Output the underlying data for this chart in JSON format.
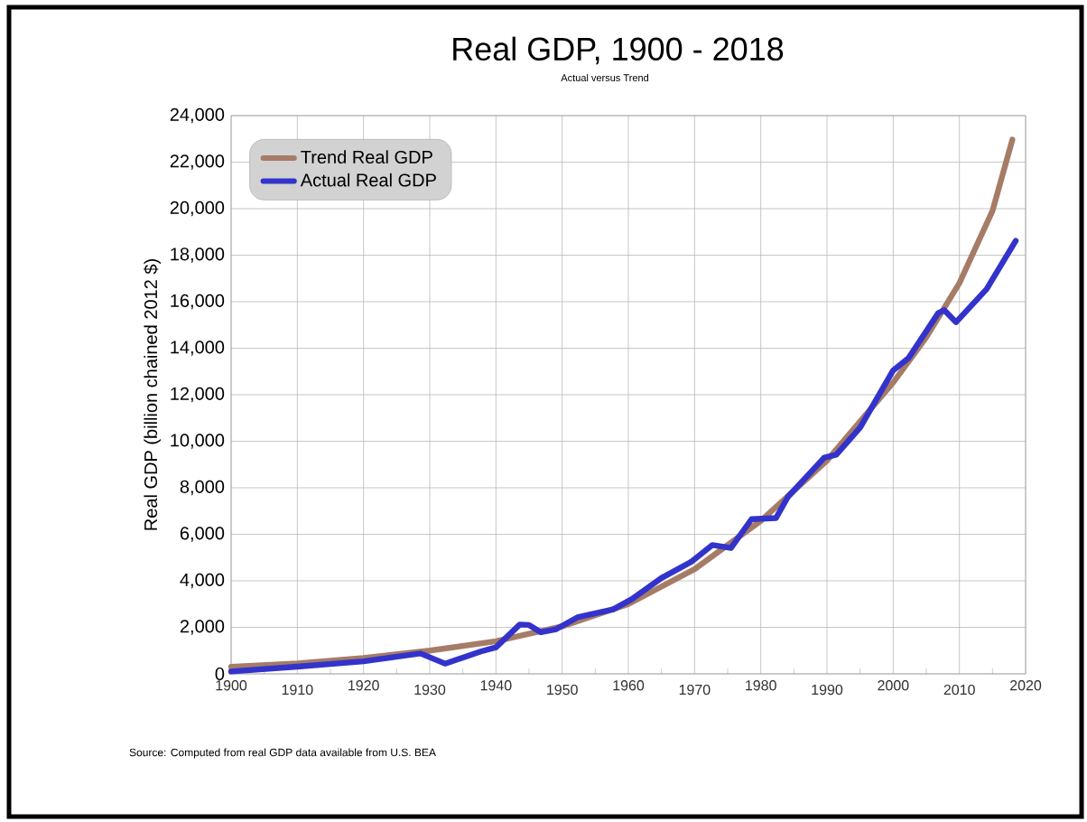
{
  "chart_data": {
    "type": "line",
    "title": "Real GDP, 1900 - 2018",
    "subtitle": "Actual versus Trend",
    "ylabel": "Real GDP (billion chained 2012  $)",
    "annotations": [
      "Source: Computed from real GDP data available from U.S. BEA"
    ],
    "xlim": [
      1900,
      2020
    ],
    "xticks": [
      1900,
      1910,
      1920,
      1930,
      1940,
      1950,
      1960,
      1970,
      1980,
      1990,
      2000,
      2010,
      2020
    ],
    "ylim": [
      0,
      24000
    ],
    "yticks": [
      0,
      {
        "value": 2000,
        "label": "2,000"
      },
      {
        "value": 4000,
        "label": "4,000"
      },
      {
        "value": 6000,
        "label": "6,000"
      },
      {
        "value": 8000,
        "label": "8,000"
      },
      {
        "value": 10000,
        "label": "10,000"
      },
      {
        "value": 12000,
        "label": "12,000"
      },
      {
        "value": 14000,
        "label": "14,000"
      },
      {
        "value": 16000,
        "label": "16,000"
      },
      {
        "value": 18000,
        "label": "18,000"
      },
      {
        "value": 20000,
        "label": "20,000"
      },
      {
        "value": 22000,
        "label": "22,000"
      },
      {
        "value": 24000,
        "label": "24,000"
      }
    ],
    "grid": true,
    "legend": "top left",
    "marker": "none",
    "line_style": "solid",
    "series": [
      {
        "name": "Trend Real GDP",
        "color": "#a67c66",
        "x": [
          1900,
          1910,
          1920,
          1930,
          1940,
          1950,
          1960,
          1970,
          1980,
          1990,
          2000,
          2005,
          2010,
          2015,
          2018
        ],
        "values": [
          300,
          450,
          680,
          1000,
          1400,
          2040,
          3000,
          4500,
          6580,
          9170,
          12530,
          14470,
          16800,
          19910,
          22970
        ]
      },
      {
        "name": "Actual Real GDP",
        "color": "#3333cc",
        "x": [
          1900,
          1910,
          1920,
          1928.6,
          1932.3,
          1937.7,
          1940,
          1943.6,
          1945,
          1946.8,
          1949.1,
          1952.3,
          1957.7,
          1960.5,
          1965,
          1969.5,
          1972.7,
          1975.5,
          1978.6,
          1982.3,
          1984.1,
          1989.6,
          1991.4,
          1995,
          2000,
          2002.3,
          2006.8,
          2007.7,
          2009.5,
          2014.1,
          2018.5
        ],
        "values": [
          100,
          310,
          540,
          880,
          440,
          960,
          1140,
          2120,
          2100,
          1790,
          1920,
          2430,
          2770,
          3210,
          4120,
          4820,
          5540,
          5410,
          6650,
          6700,
          7610,
          9300,
          9420,
          10590,
          13050,
          13570,
          15510,
          15640,
          15120,
          16540,
          18620
        ]
      }
    ]
  }
}
